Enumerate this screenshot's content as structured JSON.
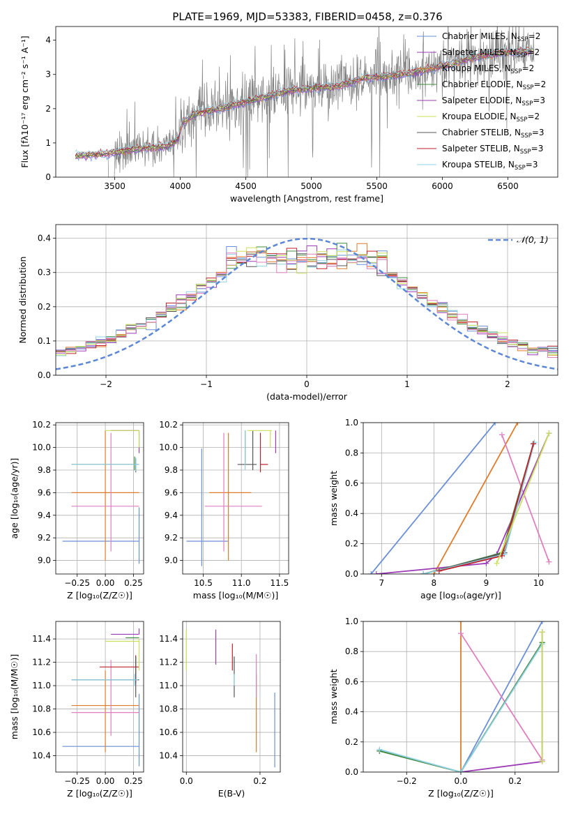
{
  "figure": {
    "title": "PLATE=1969, MJD=53383, FIBERID=0458, z=0.376"
  },
  "colors": {
    "observed": "#808080",
    "chabrier_miles": "#6a8fd8",
    "salpeter_miles": "#6a8fd8",
    "kroupa_miles": "#e07b2a",
    "chabrier_elodie": "#3f8c3f",
    "salpeter_elodie": "#9b3bb5",
    "kroupa_elodie": "#c8df5a",
    "chabrier_stelib": "#555555",
    "salpeter_stelib": "#c0202a",
    "kroupa_stelib": "#8fd0e0",
    "pink": "#e07fbf",
    "gaussian": "#5b87d6"
  },
  "chart_data": [
    {
      "id": "spectrum",
      "type": "line",
      "xlabel": "wavelength [Angstrom, rest frame]",
      "ylabel": "Flux [fλ10⁻¹⁷ erg cm⁻² s⁻¹ A⁻¹]",
      "xlim": [
        3050,
        6880
      ],
      "ylim": [
        0,
        4.4
      ],
      "xticks": [
        "3500",
        "4000",
        "4500",
        "5000",
        "5500",
        "6000",
        "6500"
      ],
      "yticks": [
        "0",
        "1",
        "2",
        "3",
        "4"
      ],
      "legend_position": "top-right",
      "legend": [
        {
          "label": "Chabrier MILES, N",
          "sub": "SSP",
          "suffix": "=2",
          "color": "#6a8fd8"
        },
        {
          "label": "Salpeter MILES, N",
          "sub": "SSP",
          "suffix": "=2",
          "color": "#9b3bb5"
        },
        {
          "label": "Kroupa MILES, N",
          "sub": "SSP",
          "suffix": "=2",
          "color": "#e07b2a"
        },
        {
          "label": "Chabrier ELODIE, N",
          "sub": "SSP",
          "suffix": "=2",
          "color": "#3f8c3f"
        },
        {
          "label": "Salpeter ELODIE, N",
          "sub": "SSP",
          "suffix": "=3",
          "color": "#9b3bb5"
        },
        {
          "label": "Kroupa ELODIE, N",
          "sub": "SSP",
          "suffix": "=2",
          "color": "#c8df5a"
        },
        {
          "label": "Chabrier STELIB, N",
          "sub": "SSP",
          "suffix": "=3",
          "color": "#555555"
        },
        {
          "label": "Salpeter STELIB, N",
          "sub": "SSP",
          "suffix": "=3",
          "color": "#c0202a"
        },
        {
          "label": "Kroupa STELIB, N",
          "sub": "SSP",
          "suffix": "=3",
          "color": "#8fd0e0"
        }
      ],
      "model_trend": [
        [
          3200,
          0.62
        ],
        [
          3450,
          0.68
        ],
        [
          3550,
          0.75
        ],
        [
          3700,
          0.85
        ],
        [
          3900,
          0.9
        ],
        [
          3980,
          1.1
        ],
        [
          4020,
          1.6
        ],
        [
          4100,
          1.85
        ],
        [
          4300,
          2.0
        ],
        [
          4600,
          2.3
        ],
        [
          4860,
          2.55
        ],
        [
          5000,
          2.6
        ],
        [
          5200,
          2.65
        ],
        [
          5400,
          2.9
        ],
        [
          5700,
          3.0
        ],
        [
          6000,
          3.25
        ],
        [
          6300,
          3.55
        ],
        [
          6500,
          3.65
        ],
        [
          6700,
          3.7
        ]
      ]
    },
    {
      "id": "residuals",
      "type": "histogram",
      "xlabel": "(data-model)/error",
      "ylabel": "Normed distribution",
      "xlim": [
        -2.5,
        2.5
      ],
      "ylim": [
        0,
        0.44
      ],
      "xticks": [
        "−2",
        "−1",
        "0",
        "1",
        "2"
      ],
      "yticks": [
        "0.0",
        "0.1",
        "0.2",
        "0.3",
        "0.4"
      ],
      "legend": [
        {
          "label": "𝒩(0, 1)",
          "color": "#5b87d6",
          "style": "dashed"
        }
      ],
      "bin_width": 0.1
    },
    {
      "id": "age_vs_Z",
      "type": "errorbar",
      "xlabel": "Z [log₁₀(Z/Z☉)]",
      "ylabel": "age  [log₁₀(age/yr)]",
      "xlim": [
        -0.44,
        0.34
      ],
      "ylim": [
        8.88,
        10.22
      ],
      "xticks": [
        "−0.25",
        "0.00",
        "0.25"
      ],
      "yticks": [
        "9.0",
        "9.2",
        "9.4",
        "9.6",
        "9.8",
        "10.0",
        "10.2"
      ],
      "points": [
        {
          "color": "#6a8fd8",
          "x": 0.3,
          "xerr": [
            0.68,
            0.0
          ],
          "y": 9.17,
          "yerr": [
            0.2,
            0.3
          ]
        },
        {
          "color": "#e07b2a",
          "x": 0.0,
          "xerr": [
            0.3,
            0.3
          ],
          "y": 9.6,
          "yerr": [
            0.6,
            0.55
          ]
        },
        {
          "color": "#e07fbf",
          "x": 0.05,
          "xerr": [
            0.35,
            0.25
          ],
          "y": 9.48,
          "yerr": [
            0.4,
            0.65
          ]
        },
        {
          "color": "#555555",
          "x": 0.27,
          "xerr": [
            0.57,
            0.03
          ],
          "y": 9.85,
          "yerr": [
            0.07,
            0.05
          ]
        },
        {
          "color": "#3f8c3f",
          "x": 0.26,
          "xerr": [
            0.56,
            0.03
          ],
          "y": 9.85,
          "yerr": [
            0.05,
            0.07
          ]
        },
        {
          "color": "#8fd0e0",
          "x": 0.27,
          "xerr": [
            0.57,
            0.03
          ],
          "y": 9.85,
          "yerr": [
            0.06,
            0.06
          ]
        },
        {
          "color": "#9b3bb5",
          "x": 0.3,
          "xerr": [
            0.25,
            0.0
          ],
          "y": 10.15,
          "yerr": [
            0.2,
            0.0
          ]
        },
        {
          "color": "#c8df5a",
          "x": 0.3,
          "xerr": [
            0.3,
            0.0
          ],
          "y": 10.15,
          "yerr": [
            0.15,
            0.0
          ]
        }
      ]
    },
    {
      "id": "age_vs_mass",
      "type": "errorbar",
      "xlabel": "mass [log₁₀(M/M☉)]",
      "xlim": [
        10.23,
        11.62
      ],
      "ylim": [
        8.88,
        10.22
      ],
      "xticks": [
        "10.5",
        "11.0",
        "11.5"
      ],
      "yticks": [
        "9.0",
        "9.2",
        "9.4",
        "9.6",
        "9.8",
        "10.0",
        "10.2"
      ],
      "points": [
        {
          "color": "#6a8fd8",
          "x": 10.48,
          "xerr": [
            0.2,
            0.35
          ],
          "y": 9.17,
          "yerr": [
            0.22,
            0.82
          ]
        },
        {
          "color": "#e07b2a",
          "x": 10.83,
          "xerr": [
            0.25,
            0.3
          ],
          "y": 9.6,
          "yerr": [
            0.6,
            0.53
          ]
        },
        {
          "color": "#e07fbf",
          "x": 10.77,
          "xerr": [
            0.25,
            0.5
          ],
          "y": 9.48,
          "yerr": [
            0.4,
            0.65
          ]
        },
        {
          "color": "#555555",
          "x": 11.15,
          "xerr": [
            0.2,
            0.05
          ],
          "y": 9.85,
          "yerr": [
            0.05,
            0.3
          ]
        },
        {
          "color": "#3f8c3f",
          "x": 11.05,
          "xerr": [
            0.0,
            0.0
          ],
          "y": 9.85,
          "yerr": [
            0.0,
            0.3
          ]
        },
        {
          "color": "#8fd0e0",
          "x": 11.05,
          "xerr": [
            0.0,
            0.0
          ],
          "y": 9.85,
          "yerr": [
            0.05,
            0.3
          ]
        },
        {
          "color": "#c0202a",
          "x": 11.25,
          "xerr": [
            0.0,
            0.1
          ],
          "y": 9.85,
          "yerr": [
            0.07,
            0.28
          ]
        },
        {
          "color": "#9b3bb5",
          "x": 11.45,
          "xerr": [
            0.0,
            0.0
          ],
          "y": 10.15,
          "yerr": [
            0.2,
            0.0
          ]
        },
        {
          "color": "#c8df5a",
          "x": 11.38,
          "xerr": [
            0.3,
            0.02
          ],
          "y": 10.15,
          "yerr": [
            0.15,
            0.0
          ]
        }
      ]
    },
    {
      "id": "massweight_vs_age",
      "type": "line",
      "xlabel": "age  [log₁₀(age/yr)]",
      "ylabel": "mass weight",
      "xlim": [
        6.65,
        10.38
      ],
      "ylim": [
        0,
        1.0
      ],
      "xticks": [
        "7",
        "8",
        "9",
        "10"
      ],
      "yticks": [
        "0.0",
        "0.2",
        "0.4",
        "0.6",
        "0.8",
        "1.0"
      ],
      "series": [
        {
          "color": "#6a8fd8",
          "x": [
            6.8,
            9.17
          ],
          "y": [
            0.0,
            1.0
          ]
        },
        {
          "color": "#e07b2a",
          "x": [
            8.0,
            9.6
          ],
          "y": [
            0.0,
            1.0
          ]
        },
        {
          "color": "#e07fbf",
          "x": [
            9.3,
            10.2
          ],
          "y": [
            0.92,
            0.08
          ]
        },
        {
          "color": "#9b3bb5",
          "x": [
            6.9,
            9.0,
            9.2,
            10.2
          ],
          "y": [
            0.0,
            0.07,
            0.13,
            0.93
          ]
        },
        {
          "color": "#3f8c3f",
          "x": [
            7.8,
            9.3,
            9.9
          ],
          "y": [
            0.0,
            0.14,
            0.86
          ]
        },
        {
          "color": "#555555",
          "x": [
            7.8,
            9.35,
            9.9
          ],
          "y": [
            0.0,
            0.14,
            0.86
          ]
        },
        {
          "color": "#8fd0e0",
          "x": [
            7.8,
            9.35,
            9.92
          ],
          "y": [
            0.0,
            0.13,
            0.87
          ]
        },
        {
          "color": "#c0202a",
          "x": [
            8.1,
            9.3,
            9.9
          ],
          "y": [
            0.02,
            0.12,
            0.86
          ]
        },
        {
          "color": "#c8df5a",
          "x": [
            9.2,
            10.2
          ],
          "y": [
            0.07,
            0.93
          ]
        }
      ]
    },
    {
      "id": "mass_vs_Z",
      "type": "errorbar",
      "xlabel": "Z [log₁₀(Z/Z☉)]",
      "ylabel": "mass [log₁₀(M/M☉)]",
      "xlim": [
        -0.44,
        0.34
      ],
      "ylim": [
        10.26,
        11.55
      ],
      "xticks": [
        "−0.25",
        "0.00",
        "0.25"
      ],
      "yticks": [
        "10.4",
        "10.6",
        "10.8",
        "11.0",
        "11.2",
        "11.4"
      ],
      "points": [
        {
          "color": "#6a8fd8",
          "x": 0.3,
          "xerr": [
            0.68,
            0.0
          ],
          "y": 10.48,
          "yerr": [
            0.17,
            0.45
          ]
        },
        {
          "color": "#e07b2a",
          "x": 0.0,
          "xerr": [
            0.3,
            0.3
          ],
          "y": 10.83,
          "yerr": [
            0.4,
            0.3
          ]
        },
        {
          "color": "#e07fbf",
          "x": 0.05,
          "xerr": [
            0.35,
            0.25
          ],
          "y": 10.77,
          "yerr": [
            0.2,
            0.45
          ]
        },
        {
          "color": "#c0202a",
          "x": 0.27,
          "xerr": [
            0.32,
            0.03
          ],
          "y": 11.16,
          "yerr": [
            0.14,
            0.1
          ]
        },
        {
          "color": "#555555",
          "x": 0.27,
          "xerr": [
            0.57,
            0.03
          ],
          "y": 11.05,
          "yerr": [
            0.15,
            0.2
          ]
        },
        {
          "color": "#8fd0e0",
          "x": 0.26,
          "xerr": [
            0.56,
            0.03
          ],
          "y": 11.05,
          "yerr": [
            0.05,
            0.05
          ]
        },
        {
          "color": "#9b3bb5",
          "x": 0.3,
          "xerr": [
            0.25,
            0.0
          ],
          "y": 11.44,
          "yerr": [
            0.0,
            0.05
          ]
        },
        {
          "color": "#c8df5a",
          "x": 0.3,
          "xerr": [
            0.3,
            0.0
          ],
          "y": 11.38,
          "yerr": [
            0.25,
            0.02
          ]
        },
        {
          "color": "#3f8c3f",
          "x": 0.3,
          "xerr": [
            0.12,
            0.0
          ],
          "y": 11.41,
          "yerr": [
            0.0,
            0.0
          ]
        }
      ]
    },
    {
      "id": "mass_vs_EBV",
      "type": "errorbar",
      "xlabel": "E(B-V)",
      "xlim": [
        -0.01,
        0.255
      ],
      "ylim": [
        10.26,
        11.55
      ],
      "xticks": [
        "0.0",
        "0.2"
      ],
      "yticks": [
        "10.4",
        "10.6",
        "10.8",
        "11.0",
        "11.2",
        "11.4"
      ],
      "points": [
        {
          "color": "#c8df5a",
          "x": 0.0,
          "y": 11.38,
          "yerr": [
            0.25,
            0.1
          ]
        },
        {
          "color": "#9b3bb5",
          "x": 0.08,
          "y": 11.38,
          "yerr": [
            0.2,
            0.1
          ]
        },
        {
          "color": "#c0202a",
          "x": 0.125,
          "y": 11.28,
          "yerr": [
            0.15,
            0.08
          ]
        },
        {
          "color": "#555555",
          "x": 0.13,
          "y": 11.05,
          "yerr": [
            0.15,
            0.2
          ]
        },
        {
          "color": "#8fd0e0",
          "x": 0.13,
          "y": 11.05,
          "yerr": [
            0.05,
            0.05
          ]
        },
        {
          "color": "#e07b2a",
          "x": 0.19,
          "y": 10.8,
          "yerr": [
            0.37,
            0.3
          ]
        },
        {
          "color": "#e07fbf",
          "x": 0.19,
          "y": 11.0,
          "yerr": [
            0.1,
            0.27
          ]
        },
        {
          "color": "#6a8fd8",
          "x": 0.24,
          "y": 10.62,
          "yerr": [
            0.32,
            0.32
          ]
        }
      ]
    },
    {
      "id": "massweight_vs_Z",
      "type": "line",
      "xlabel": "Z [log₁₀(Z/Z☉)]",
      "ylabel": "mass weight",
      "xlim": [
        -0.36,
        0.36
      ],
      "ylim": [
        0,
        1.0
      ],
      "xticks": [
        "−0.2",
        "0.0",
        "0.2"
      ],
      "yticks": [
        "0.0",
        "0.2",
        "0.4",
        "0.6",
        "0.8",
        "1.0"
      ],
      "series": [
        {
          "color": "#6a8fd8",
          "x": [
            0.0,
            0.3
          ],
          "y": [
            0.0,
            1.0
          ]
        },
        {
          "color": "#e07b2a",
          "x": [
            0.0,
            0.0
          ],
          "y": [
            0.0,
            1.0
          ]
        },
        {
          "color": "#e07fbf",
          "x": [
            0.0,
            0.3
          ],
          "y": [
            0.92,
            0.08
          ]
        },
        {
          "color": "#9b3bb5",
          "x": [
            0.0,
            0.3,
            0.3
          ],
          "y": [
            0.0,
            0.07,
            0.93
          ]
        },
        {
          "color": "#555555",
          "x": [
            -0.3,
            0.0,
            0.3
          ],
          "y": [
            0.14,
            0.0,
            0.86
          ]
        },
        {
          "color": "#3f8c3f",
          "x": [
            -0.3,
            0.0,
            0.3
          ],
          "y": [
            0.14,
            0.0,
            0.86
          ]
        },
        {
          "color": "#8fd0e0",
          "x": [
            -0.3,
            0.0,
            0.3
          ],
          "y": [
            0.15,
            0.0,
            0.85
          ]
        },
        {
          "color": "#c8df5a",
          "x": [
            0.3,
            0.3
          ],
          "y": [
            0.07,
            0.93
          ]
        }
      ]
    }
  ]
}
